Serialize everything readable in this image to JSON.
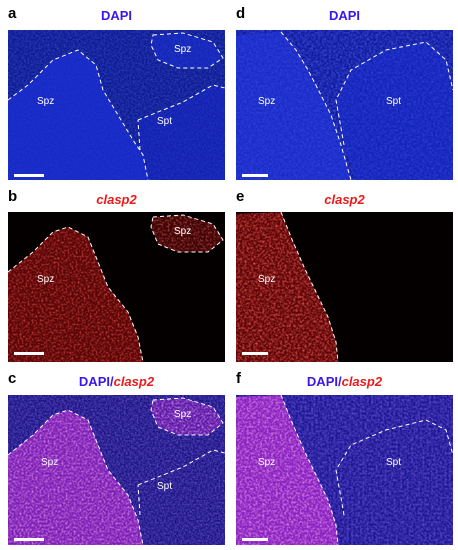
{
  "figure": {
    "panels": [
      {
        "id": "a",
        "letter": "a",
        "stain": "dapi",
        "title_parts": [
          "DAPI"
        ],
        "labels": [
          "Spz",
          "Spz",
          "Spt"
        ]
      },
      {
        "id": "b",
        "letter": "b",
        "stain": "clasp2",
        "title_parts": [
          "clasp2"
        ],
        "labels": [
          "Spz",
          "Spz"
        ]
      },
      {
        "id": "c",
        "letter": "c",
        "stain": "merge",
        "title_parts": [
          "DAPI/",
          "clasp2"
        ],
        "labels": [
          "Spz",
          "Spz",
          "Spt"
        ]
      },
      {
        "id": "d",
        "letter": "d",
        "stain": "dapi",
        "title_parts": [
          "DAPI"
        ],
        "labels": [
          "Spz",
          "Spt"
        ]
      },
      {
        "id": "e",
        "letter": "e",
        "stain": "clasp2",
        "title_parts": [
          "clasp2"
        ],
        "labels": [
          "Spz"
        ]
      },
      {
        "id": "f",
        "letter": "f",
        "stain": "merge",
        "title_parts": [
          "DAPI/",
          "clasp2"
        ],
        "labels": [
          "Spz",
          "Spt"
        ]
      }
    ],
    "colors": {
      "dapi": "#1a2bd6",
      "clasp2": "#ee1a1a",
      "merge": "#c72bdc",
      "letter": "#000000"
    }
  }
}
